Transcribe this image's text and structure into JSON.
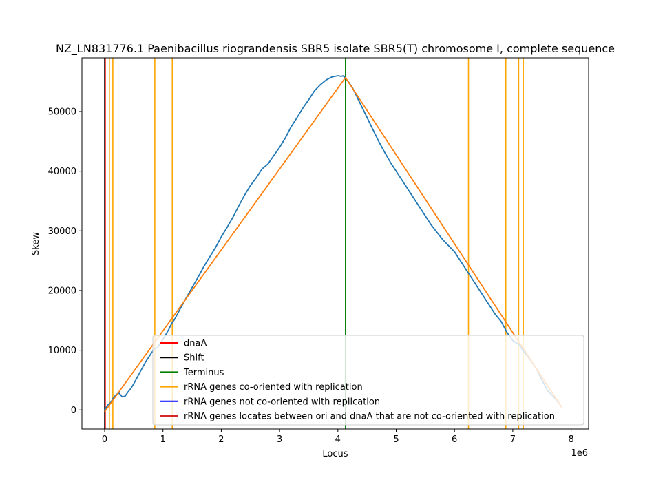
{
  "chart_data": {
    "type": "line",
    "title": "NZ_LN831776.1 Paenibacillus riograndensis SBR5 isolate SBR5(T) chromosome I, complete sequence",
    "xlabel": "Locus",
    "ylabel": "Skew",
    "x_offset_label": "1e6",
    "xlim": [
      -390000,
      8300000
    ],
    "ylim": [
      -3200,
      59000
    ],
    "x_ticks": [
      0,
      1,
      2,
      3,
      4,
      5,
      6,
      7,
      8
    ],
    "x_tick_labels": [
      "0",
      "1",
      "2",
      "3",
      "4",
      "5",
      "6",
      "7",
      "8"
    ],
    "y_ticks": [
      0,
      10000,
      20000,
      30000,
      40000,
      50000
    ],
    "y_tick_labels": [
      "0",
      "10000",
      "20000",
      "30000",
      "40000",
      "50000"
    ],
    "colors": {
      "skew": "#1f77b4",
      "fit": "#ff7f0e",
      "dnaA": "#ff0000",
      "shift": "#000000",
      "terminus": "#008000",
      "rrna_co": "#ffa500",
      "rrna_not_co": "#0000ff",
      "rrna_between": "#d62728"
    },
    "series": [
      {
        "key": "skew",
        "x": [
          0,
          50000,
          100000,
          150000,
          200000,
          250000,
          300000,
          350000,
          400000,
          450000,
          500000,
          600000,
          700000,
          800000,
          850000,
          900000,
          1000000,
          1100000,
          1150000,
          1200000,
          1300000,
          1400000,
          1500000,
          1600000,
          1700000,
          1800000,
          1900000,
          2000000,
          2100000,
          2200000,
          2300000,
          2400000,
          2500000,
          2600000,
          2700000,
          2800000,
          2900000,
          3000000,
          3100000,
          3200000,
          3300000,
          3400000,
          3500000,
          3600000,
          3700000,
          3800000,
          3900000,
          4000000,
          4050000,
          4100000,
          4130000,
          4180000,
          4250000,
          4300000,
          4400000,
          4500000,
          4600000,
          4700000,
          4800000,
          4900000,
          5000000,
          5200000,
          5400000,
          5600000,
          5800000,
          6000000,
          6100000,
          6200000,
          6300000,
          6400000,
          6500000,
          6600000,
          6700000,
          6800000,
          6900000,
          7000000,
          7100000,
          7200000,
          7300000,
          7400000,
          7500000,
          7600000,
          7700000,
          7800000,
          7850000
        ],
        "y": [
          0,
          800,
          1200,
          2000,
          2600,
          2800,
          2200,
          2300,
          3000,
          3600,
          4400,
          6200,
          8000,
          9500,
          10200,
          10400,
          11800,
          13500,
          14500,
          15200,
          17000,
          18800,
          20500,
          22200,
          24000,
          25600,
          27200,
          29000,
          30600,
          32300,
          34200,
          36000,
          37600,
          38900,
          40400,
          41200,
          42600,
          44000,
          45600,
          47500,
          49000,
          50600,
          52000,
          53500,
          54500,
          55300,
          55800,
          56000,
          55900,
          56000,
          55500,
          55000,
          54000,
          53000,
          51000,
          49000,
          47000,
          45000,
          43200,
          41500,
          40000,
          37000,
          34000,
          31000,
          28500,
          26500,
          25000,
          23500,
          22000,
          20500,
          19000,
          17500,
          16000,
          14800,
          13000,
          11600,
          11000,
          9600,
          8400,
          7000,
          5000,
          3200,
          2200,
          1000,
          300
        ]
      },
      {
        "key": "fit",
        "x": [
          0,
          4130000,
          7850000
        ],
        "y": [
          -300,
          55700,
          300
        ]
      }
    ],
    "vlines": [
      {
        "key": "rrna_co",
        "x": 80000
      },
      {
        "key": "rrna_co",
        "x": 140000
      },
      {
        "key": "rrna_co",
        "x": 860000
      },
      {
        "key": "rrna_co",
        "x": 1160000
      },
      {
        "key": "rrna_co",
        "x": 6240000
      },
      {
        "key": "rrna_co",
        "x": 6880000
      },
      {
        "key": "rrna_co",
        "x": 7100000
      },
      {
        "key": "rrna_co",
        "x": 7180000
      },
      {
        "key": "shift",
        "x": 0
      },
      {
        "key": "dnaA",
        "x": 10000
      },
      {
        "key": "terminus",
        "x": 4130000
      }
    ],
    "legend": {
      "placement": "bottom-right",
      "entries": [
        {
          "key": "dnaA",
          "label": "dnaA"
        },
        {
          "key": "shift",
          "label": "Shift"
        },
        {
          "key": "terminus",
          "label": "Terminus"
        },
        {
          "key": "rrna_co",
          "label": "rRNA genes co-oriented with replication"
        },
        {
          "key": "rrna_not_co",
          "label": "rRNA genes not co-oriented with replication"
        },
        {
          "key": "rrna_between",
          "label": "rRNA genes locates between ori and dnaA that are not co-oriented with replication"
        }
      ]
    },
    "grid": false
  }
}
